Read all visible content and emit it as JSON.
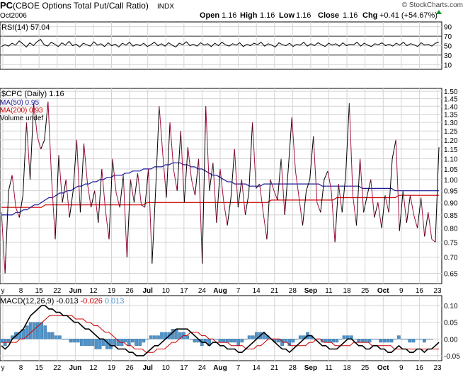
{
  "header": {
    "symbol": "PC",
    "name": "(CBOE Options Total Put/Call Ratio)",
    "exchange": "INDX",
    "date": "Oct2006",
    "open_label": "Open",
    "open": "1.16",
    "high_label": "High",
    "high": "1.16",
    "low_label": "Low",
    "low": "1.16",
    "close_label": "Close",
    "close": "1.16",
    "chg_label": "Chg",
    "chg": "+0.41 (+54.67%)",
    "watermark": "© StockCharts.com"
  },
  "colors": {
    "price": "#000000",
    "ma50": "#1a1a9c",
    "ma200": "#cc0000",
    "price_down": "#a01040",
    "macd_hist": "#4f93c9",
    "macd_signal": "#cc0000",
    "grid": "#d4d4d4"
  },
  "chart_data": [
    {
      "type": "line",
      "panel": "rsi",
      "title": "RSI(14) 57.04",
      "yticks": [
        "90",
        "70",
        "50",
        "30",
        "10"
      ],
      "ylim": [
        0,
        100
      ],
      "series": [
        {
          "name": "RSI(14)",
          "values": [
            48,
            52,
            49,
            55,
            51,
            60,
            54,
            47,
            56,
            50,
            58,
            63,
            52,
            49,
            57,
            53,
            48,
            56,
            51,
            59,
            50,
            53,
            47,
            55,
            52,
            49,
            58,
            51,
            54,
            48,
            56,
            50,
            53,
            47,
            55,
            51,
            57,
            49,
            53,
            50,
            55,
            48,
            52,
            57,
            50,
            54,
            49,
            56,
            51,
            47,
            55,
            52,
            58,
            50,
            53,
            49,
            56,
            51,
            54,
            48,
            55,
            50,
            57,
            52,
            49,
            54,
            51,
            56,
            48,
            53,
            50,
            55,
            52,
            57,
            49,
            54,
            51,
            47,
            56,
            52,
            50,
            55,
            48,
            53,
            51,
            57,
            49,
            54,
            50,
            56,
            52,
            48,
            55,
            51,
            54,
            49,
            56,
            50,
            53,
            52,
            57,
            49,
            55,
            51,
            48,
            54,
            52,
            56,
            50,
            53,
            49,
            55,
            51,
            57,
            50,
            54,
            52,
            48,
            56,
            51,
            53,
            49,
            55,
            57
          ]
        }
      ]
    },
    {
      "type": "line",
      "panel": "price",
      "title": "$CPC (Daily) 1.16",
      "yscale": "log",
      "ylim": [
        0.62,
        1.52
      ],
      "yticks": [
        "1.50",
        "1.45",
        "1.40",
        "1.35",
        "1.30",
        "1.25",
        "1.20",
        "1.15",
        "1.10",
        "1.05",
        "1.00",
        "0.95",
        "0.90",
        "0.85",
        "0.80",
        "0.75",
        "0.70",
        "0.65"
      ],
      "x_labels": [
        "y",
        "8",
        "15",
        "22",
        "Jun",
        "12",
        "19",
        "26",
        "Jul",
        "10",
        "17",
        "24",
        "Aug",
        "7",
        "14",
        "21",
        "28",
        "Sep",
        "11",
        "18",
        "25",
        "Oct",
        "9",
        "16",
        "23"
      ],
      "legend": [
        "MA(50) 0.95",
        "MA(200) 0.93",
        "Volume undef"
      ],
      "series": [
        {
          "name": "$CPC",
          "values": [
            0.86,
            0.65,
            0.95,
            1.02,
            0.88,
            0.84,
            0.93,
            1.3,
            1.0,
            1.42,
            1.22,
            1.15,
            1.2,
            1.43,
            1.0,
            0.76,
            1.12,
            0.9,
            1.0,
            0.84,
            0.95,
            1.2,
            0.86,
            1.18,
            0.98,
            0.88,
            0.95,
            0.82,
            1.05,
            0.87,
            0.76,
            1.1,
            0.94,
            0.88,
            1.02,
            0.7,
            1.0,
            0.9,
            1.03,
            0.89,
            0.88,
            1.05,
            0.68,
            0.95,
            1.4,
            1.12,
            0.92,
            1.3,
            1.05,
            0.95,
            1.25,
            0.9,
            1.16,
            1.0,
            0.93,
            1.1,
            0.68,
            1.4,
            0.95,
            1.08,
            0.82,
            1.05,
            0.9,
            0.81,
            0.92,
            1.15,
            0.88,
            1.0,
            0.85,
            0.94,
            1.3,
            0.96,
            0.98,
            0.86,
            0.76,
            1.0,
            0.95,
            0.91,
            1.1,
            0.85,
            1.05,
            1.33,
            1.04,
            0.92,
            0.81,
            0.95,
            1.0,
            1.22,
            0.9,
            0.86,
            1.0,
            1.04,
            0.95,
            0.75,
            0.98,
            0.86,
            1.02,
            1.42,
            0.93,
            0.81,
            1.1,
            0.86,
            0.93,
            1.0,
            0.84,
            0.9,
            0.8,
            0.93,
            0.86,
            1.1,
            1.2,
            0.79,
            0.95,
            0.82,
            0.93,
            0.85,
            0.8,
            0.92,
            0.77,
            0.86,
            0.76,
            0.75,
            1.16
          ]
        },
        {
          "name": "MA(50)",
          "values": [
            0.85,
            0.85,
            0.85,
            0.85,
            0.86,
            0.86,
            0.87,
            0.87,
            0.88,
            0.89,
            0.89,
            0.9,
            0.91,
            0.92,
            0.92,
            0.93,
            0.94,
            0.94,
            0.95,
            0.95,
            0.96,
            0.97,
            0.97,
            0.98,
            0.98,
            0.99,
            0.99,
            1.0,
            1.0,
            1.01,
            1.01,
            1.02,
            1.02,
            1.02,
            1.03,
            1.03,
            1.04,
            1.04,
            1.04,
            1.05,
            1.05,
            1.05,
            1.06,
            1.06,
            1.06,
            1.07,
            1.07,
            1.08,
            1.08,
            1.08,
            1.07,
            1.07,
            1.06,
            1.06,
            1.05,
            1.05,
            1.04,
            1.03,
            1.02,
            1.02,
            1.01,
            1.0,
            0.99,
            0.99,
            0.98,
            0.98,
            0.98,
            0.98,
            0.97,
            0.97,
            0.97,
            0.97,
            0.98,
            0.98,
            0.98,
            0.98,
            0.98,
            0.98,
            0.98,
            0.98,
            0.98,
            0.98,
            0.98,
            0.98,
            0.98,
            0.98,
            0.98,
            0.98,
            0.97,
            0.97,
            0.97,
            0.97,
            0.97,
            0.97,
            0.97,
            0.97,
            0.97,
            0.97,
            0.97,
            0.96,
            0.96,
            0.96,
            0.96,
            0.96,
            0.96,
            0.96,
            0.96,
            0.96,
            0.95,
            0.95,
            0.95,
            0.95,
            0.95,
            0.95,
            0.95,
            0.95,
            0.95,
            0.95,
            0.95,
            0.95,
            0.95
          ]
        },
        {
          "name": "MA(200)",
          "values": [
            0.88,
            0.88,
            0.88,
            0.88,
            0.88,
            0.88,
            0.88,
            0.88,
            0.88,
            0.88,
            0.88,
            0.88,
            0.89,
            0.89,
            0.89,
            0.89,
            0.89,
            0.89,
            0.89,
            0.89,
            0.89,
            0.89,
            0.89,
            0.89,
            0.89,
            0.89,
            0.89,
            0.89,
            0.89,
            0.89,
            0.89,
            0.89,
            0.89,
            0.89,
            0.89,
            0.89,
            0.89,
            0.89,
            0.89,
            0.89,
            0.9,
            0.9,
            0.9,
            0.9,
            0.9,
            0.9,
            0.9,
            0.9,
            0.9,
            0.9,
            0.9,
            0.9,
            0.9,
            0.9,
            0.9,
            0.9,
            0.9,
            0.9,
            0.9,
            0.9,
            0.9,
            0.9,
            0.9,
            0.9,
            0.9,
            0.9,
            0.9,
            0.9,
            0.9,
            0.9,
            0.9,
            0.9,
            0.9,
            0.9,
            0.91,
            0.91,
            0.91,
            0.91,
            0.91,
            0.91,
            0.91,
            0.91,
            0.91,
            0.91,
            0.91,
            0.91,
            0.91,
            0.91,
            0.91,
            0.91,
            0.91,
            0.91,
            0.92,
            0.92,
            0.92,
            0.92,
            0.92,
            0.92,
            0.92,
            0.92,
            0.92,
            0.92,
            0.92,
            0.92,
            0.92,
            0.92,
            0.92,
            0.92,
            0.92,
            0.93,
            0.93,
            0.93,
            0.93,
            0.93,
            0.93,
            0.93,
            0.93,
            0.93,
            0.93,
            0.93,
            0.93
          ]
        }
      ]
    },
    {
      "type": "line",
      "panel": "macd",
      "title": "MACD(12,26,9)",
      "title_values": [
        "-0.013",
        "-0.026",
        "0.013"
      ],
      "ylim": [
        -0.065,
        0.13
      ],
      "yticks": [
        "0.10",
        "0.05",
        "0.00",
        "-0.05"
      ],
      "x_labels": [
        "y",
        "8",
        "15",
        "22",
        "Jun",
        "12",
        "19",
        "26",
        "Jul",
        "10",
        "17",
        "24",
        "Aug",
        "7",
        "14",
        "21",
        "28",
        "Sep",
        "11",
        "18",
        "25",
        "Oct",
        "9",
        "16",
        "23"
      ],
      "series": [
        {
          "name": "MACD",
          "values": [
            -0.02,
            -0.03,
            -0.02,
            0.0,
            0.01,
            0.02,
            0.03,
            0.05,
            0.07,
            0.08,
            0.09,
            0.1,
            0.1,
            0.09,
            0.09,
            0.08,
            0.08,
            0.07,
            0.07,
            0.06,
            0.05,
            0.05,
            0.04,
            0.03,
            0.03,
            0.02,
            0.01,
            0.0,
            0.0,
            -0.01,
            -0.02,
            -0.02,
            -0.03,
            -0.03,
            -0.03,
            -0.04,
            -0.04,
            -0.05,
            -0.05,
            -0.05,
            -0.04,
            -0.03,
            -0.02,
            -0.02,
            -0.01,
            0.0,
            0.01,
            0.02,
            0.03,
            0.03,
            0.03,
            0.03,
            0.02,
            0.01,
            0.0,
            -0.01,
            -0.01,
            -0.02,
            -0.01,
            -0.01,
            -0.02,
            -0.02,
            -0.03,
            -0.03,
            -0.03,
            -0.04,
            -0.04,
            -0.03,
            -0.02,
            -0.01,
            0.0,
            0.01,
            0.02,
            0.01,
            0.0,
            -0.01,
            -0.02,
            -0.03,
            -0.03,
            -0.04,
            -0.03,
            -0.02,
            -0.01,
            0.0,
            0.01,
            0.01,
            0.0,
            -0.01,
            -0.02,
            -0.02,
            -0.03,
            -0.03,
            -0.03,
            -0.02,
            -0.01,
            0.0,
            0.0,
            -0.01,
            -0.02,
            -0.02,
            -0.03,
            -0.03,
            -0.02,
            -0.02,
            -0.03,
            -0.03,
            -0.04,
            -0.04,
            -0.03,
            -0.02,
            -0.03,
            -0.03,
            -0.04,
            -0.04,
            -0.03,
            -0.03,
            -0.04,
            -0.03,
            -0.03,
            -0.02,
            -0.01
          ]
        },
        {
          "name": "Signal",
          "values": [
            -0.01,
            -0.01,
            -0.01,
            -0.01,
            -0.01,
            0.0,
            0.0,
            0.01,
            0.02,
            0.03,
            0.04,
            0.05,
            0.06,
            0.07,
            0.07,
            0.07,
            0.07,
            0.07,
            0.07,
            0.07,
            0.06,
            0.06,
            0.06,
            0.05,
            0.05,
            0.04,
            0.04,
            0.03,
            0.02,
            0.02,
            0.01,
            0.0,
            -0.01,
            -0.01,
            -0.02,
            -0.02,
            -0.03,
            -0.03,
            -0.03,
            -0.04,
            -0.04,
            -0.04,
            -0.03,
            -0.03,
            -0.03,
            -0.02,
            -0.01,
            -0.01,
            0.0,
            0.01,
            0.01,
            0.02,
            0.02,
            0.02,
            0.01,
            0.01,
            0.0,
            0.0,
            -0.01,
            -0.01,
            -0.01,
            -0.01,
            -0.02,
            -0.02,
            -0.02,
            -0.02,
            -0.03,
            -0.03,
            -0.03,
            -0.02,
            -0.02,
            -0.01,
            0.0,
            0.0,
            0.0,
            0.0,
            -0.01,
            -0.01,
            -0.02,
            -0.02,
            -0.02,
            -0.02,
            -0.02,
            -0.01,
            -0.01,
            0.0,
            0.0,
            -0.01,
            -0.01,
            -0.01,
            -0.02,
            -0.02,
            -0.02,
            -0.02,
            -0.02,
            -0.01,
            -0.01,
            -0.01,
            -0.01,
            -0.01,
            -0.02,
            -0.02,
            -0.02,
            -0.02,
            -0.02,
            -0.02,
            -0.03,
            -0.03,
            -0.03,
            -0.03,
            -0.03,
            -0.03,
            -0.03,
            -0.03,
            -0.03,
            -0.03,
            -0.03,
            -0.03,
            -0.03
          ]
        }
      ]
    }
  ]
}
